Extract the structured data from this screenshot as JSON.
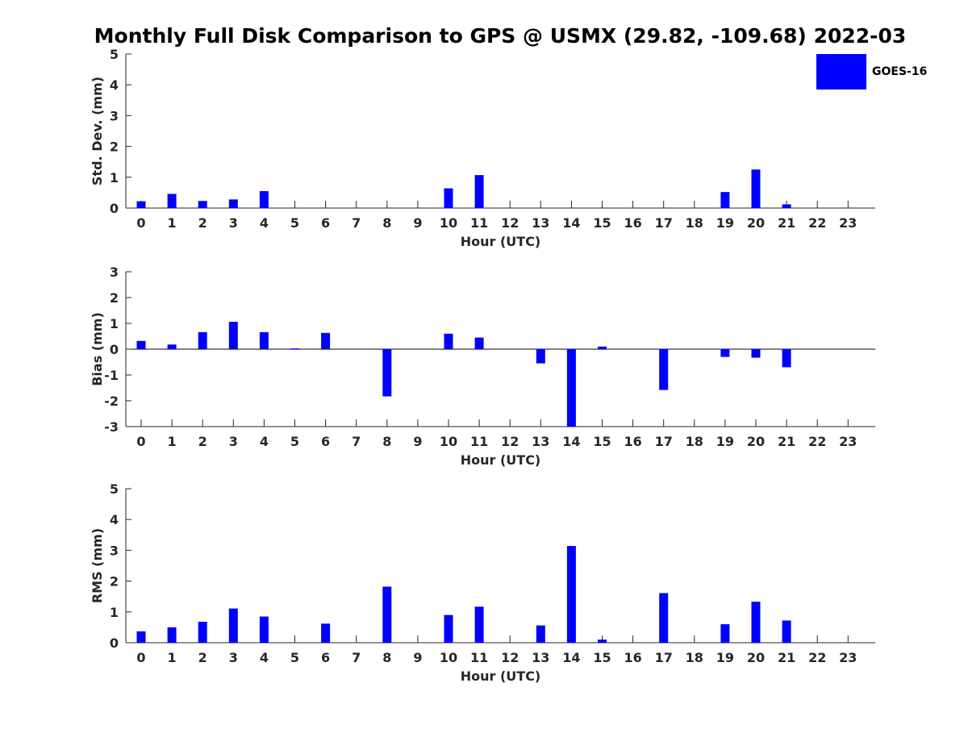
{
  "title": "Monthly Full Disk Comparison to GPS @ USMX (29.82, -109.68) 2022-03",
  "legend": {
    "label": "GOES-16",
    "color": "#0000ff",
    "placement": "top-right"
  },
  "chart_data": [
    {
      "type": "bar",
      "xlabel": "Hour (UTC)",
      "ylabel": "Std. Dev. (mm)",
      "ylim": [
        0,
        5
      ],
      "yticks": [
        0,
        1,
        2,
        3,
        4,
        5
      ],
      "categories": [
        "0",
        "1",
        "2",
        "3",
        "4",
        "5",
        "6",
        "7",
        "8",
        "9",
        "10",
        "11",
        "12",
        "13",
        "14",
        "15",
        "16",
        "17",
        "18",
        "19",
        "20",
        "21",
        "22",
        "23"
      ],
      "series": [
        {
          "name": "GOES-16",
          "values": [
            0.22,
            0.46,
            0.23,
            0.28,
            0.55,
            null,
            null,
            null,
            null,
            null,
            0.64,
            1.07,
            null,
            null,
            null,
            null,
            null,
            null,
            null,
            0.52,
            1.25,
            0.12,
            null,
            null
          ]
        }
      ]
    },
    {
      "type": "bar",
      "xlabel": "Hour (UTC)",
      "ylabel": "Bias (mm)",
      "ylim": [
        -3,
        3
      ],
      "yticks": [
        -3,
        -2,
        -1,
        0,
        1,
        2,
        3
      ],
      "categories": [
        "0",
        "1",
        "2",
        "3",
        "4",
        "5",
        "6",
        "7",
        "8",
        "9",
        "10",
        "11",
        "12",
        "13",
        "14",
        "15",
        "16",
        "17",
        "18",
        "19",
        "20",
        "21",
        "22",
        "23"
      ],
      "series": [
        {
          "name": "GOES-16",
          "values": [
            0.32,
            0.18,
            0.66,
            1.06,
            0.66,
            0.03,
            0.63,
            null,
            -1.83,
            null,
            0.6,
            0.45,
            null,
            -0.55,
            -3.0,
            0.1,
            null,
            -1.58,
            null,
            -0.3,
            -0.33,
            -0.7,
            null,
            null
          ]
        }
      ]
    },
    {
      "type": "bar",
      "xlabel": "Hour (UTC)",
      "ylabel": "RMS (mm)",
      "ylim": [
        0,
        5
      ],
      "yticks": [
        0,
        1,
        2,
        3,
        4,
        5
      ],
      "categories": [
        "0",
        "1",
        "2",
        "3",
        "4",
        "5",
        "6",
        "7",
        "8",
        "9",
        "10",
        "11",
        "12",
        "13",
        "14",
        "15",
        "16",
        "17",
        "18",
        "19",
        "20",
        "21",
        "22",
        "23"
      ],
      "series": [
        {
          "name": "GOES-16",
          "values": [
            0.37,
            0.5,
            0.68,
            1.11,
            0.85,
            null,
            0.62,
            null,
            1.82,
            null,
            0.9,
            1.17,
            null,
            0.56,
            3.14,
            0.1,
            null,
            1.61,
            null,
            0.6,
            1.33,
            0.72,
            null,
            null
          ]
        }
      ]
    }
  ]
}
